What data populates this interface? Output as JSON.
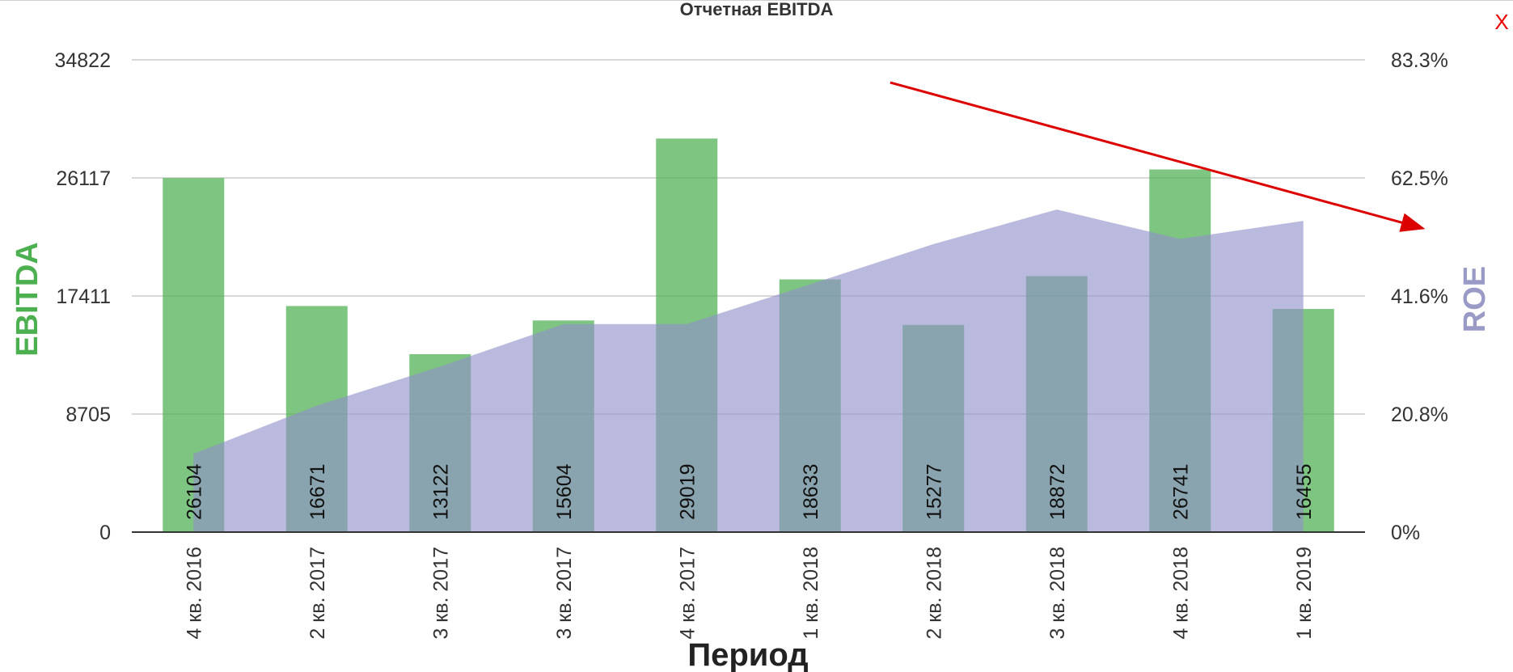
{
  "window": {
    "title": "Отчетная EBITDA",
    "close_label": "X"
  },
  "colors": {
    "bars": "#4caf50",
    "area": "#8f8fc9",
    "grid": "#cccccc",
    "arrow": "#dd0000",
    "left_axis_title": "#4caf50",
    "right_axis_title": "#9a9ac6"
  },
  "chart_data": {
    "type": "bar",
    "title": "Отчетная EBITDA",
    "xlabel": "Период",
    "ylabel": "EBITDA",
    "y2label": "ROE",
    "categories": [
      "4 кв. 2016",
      "2 кв. 2017",
      "3 кв. 2017",
      "3 кв. 2017",
      "4 кв. 2017",
      "1 кв. 2018",
      "2 кв. 2018",
      "3 кв. 2018",
      "4 кв. 2018",
      "1 кв. 2019"
    ],
    "ylim": [
      0,
      34822
    ],
    "yticks": [
      "0",
      "8705",
      "17411",
      "26117",
      "34822"
    ],
    "y2lim": [
      0,
      83.3
    ],
    "y2ticks": [
      "0%",
      "20.8%",
      "41.6%",
      "62.5%",
      "83.3%"
    ],
    "grid": true,
    "series": [
      {
        "name": "EBITDA",
        "type": "bar",
        "axis": "left",
        "values": [
          26104,
          16671,
          13122,
          15604,
          29019,
          18633,
          15277,
          18872,
          26741,
          16455
        ],
        "labels": [
          "26104",
          "16671",
          "13122",
          "15604",
          "29019",
          "18633",
          "15277",
          "18872",
          "26741",
          "16455"
        ]
      },
      {
        "name": "ROE",
        "type": "area",
        "axis": "right",
        "values": [
          13.8,
          22.3,
          29.2,
          36.7,
          36.7,
          43.7,
          50.8,
          56.9,
          51.7,
          54.9
        ]
      }
    ],
    "annotations": [
      {
        "type": "arrow",
        "description": "red downward trend arrow",
        "from": {
          "category_index": 6.15,
          "value": 79.3,
          "axis": "right"
        },
        "to": {
          "category_index": 10.45,
          "value": 53.7,
          "axis": "right"
        }
      }
    ]
  }
}
